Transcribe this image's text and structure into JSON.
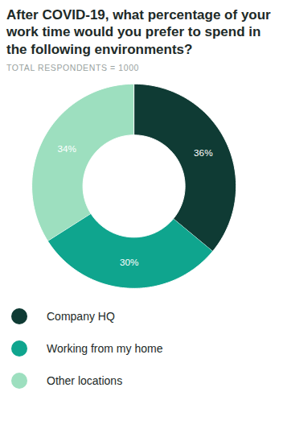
{
  "chart_data": {
    "type": "pie",
    "title": "After COVID-19, what percentage of your work time would you prefer to spend in the following environments?",
    "subtitle": "TOTAL RESPONDENTS = 1000",
    "categories": [
      "Company HQ",
      "Working from my home",
      "Other locations"
    ],
    "values": [
      36,
      30,
      34
    ],
    "value_labels": [
      "36%",
      "30%",
      "34%"
    ],
    "colors": [
      "#0f3b34",
      "#0fa58e",
      "#9ddfbf"
    ],
    "data_labels": true,
    "legend": "bottom",
    "tick_labels": false
  }
}
